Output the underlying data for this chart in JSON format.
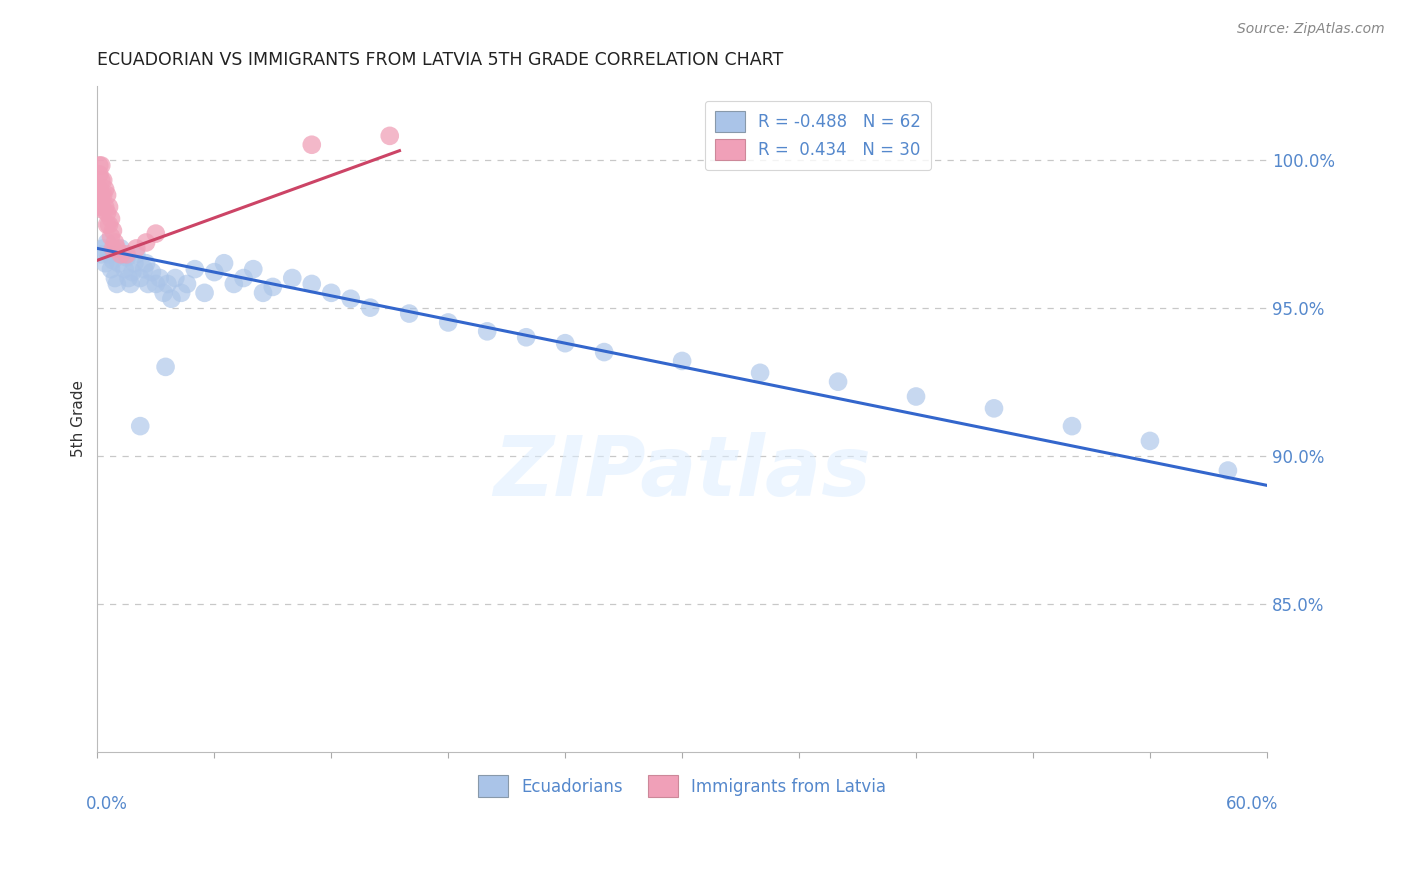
{
  "title": "ECUADORIAN VS IMMIGRANTS FROM LATVIA 5TH GRADE CORRELATION CHART",
  "source": "Source: ZipAtlas.com",
  "ylabel": "5th Grade",
  "xlim": [
    0.0,
    0.6
  ],
  "ylim": [
    0.8,
    1.025
  ],
  "yticks": [
    0.85,
    0.9,
    0.95,
    1.0
  ],
  "ytick_labels": [
    "85.0%",
    "90.0%",
    "95.0%",
    "100.0%"
  ],
  "grid_color": "#c8c8c8",
  "watermark": "ZIPatlas",
  "blue_line_x": [
    0.0,
    0.6
  ],
  "blue_line_y": [
    0.97,
    0.89
  ],
  "pink_line_x": [
    0.0,
    0.155
  ],
  "pink_line_y": [
    0.966,
    1.003
  ],
  "blue_scatter_x": [
    0.002,
    0.003,
    0.004,
    0.005,
    0.006,
    0.007,
    0.008,
    0.009,
    0.01,
    0.011,
    0.012,
    0.013,
    0.014,
    0.015,
    0.016,
    0.017,
    0.018,
    0.019,
    0.02,
    0.022,
    0.024,
    0.025,
    0.026,
    0.028,
    0.03,
    0.032,
    0.034,
    0.036,
    0.038,
    0.04,
    0.043,
    0.046,
    0.05,
    0.055,
    0.06,
    0.065,
    0.07,
    0.075,
    0.08,
    0.085,
    0.09,
    0.1,
    0.11,
    0.12,
    0.13,
    0.14,
    0.16,
    0.18,
    0.2,
    0.22,
    0.24,
    0.26,
    0.3,
    0.34,
    0.38,
    0.42,
    0.46,
    0.5,
    0.54,
    0.58,
    0.022,
    0.035
  ],
  "blue_scatter_y": [
    0.968,
    0.97,
    0.965,
    0.972,
    0.968,
    0.963,
    0.966,
    0.96,
    0.958,
    0.965,
    0.97,
    0.968,
    0.963,
    0.967,
    0.96,
    0.958,
    0.962,
    0.965,
    0.968,
    0.96,
    0.963,
    0.965,
    0.958,
    0.962,
    0.958,
    0.96,
    0.955,
    0.958,
    0.953,
    0.96,
    0.955,
    0.958,
    0.963,
    0.955,
    0.962,
    0.965,
    0.958,
    0.96,
    0.963,
    0.955,
    0.957,
    0.96,
    0.958,
    0.955,
    0.953,
    0.95,
    0.948,
    0.945,
    0.942,
    0.94,
    0.938,
    0.935,
    0.932,
    0.928,
    0.925,
    0.92,
    0.916,
    0.91,
    0.905,
    0.895,
    0.91,
    0.93
  ],
  "pink_scatter_x": [
    0.001,
    0.001,
    0.001,
    0.002,
    0.002,
    0.002,
    0.002,
    0.003,
    0.003,
    0.003,
    0.004,
    0.004,
    0.005,
    0.005,
    0.005,
    0.006,
    0.006,
    0.007,
    0.007,
    0.008,
    0.008,
    0.009,
    0.01,
    0.012,
    0.015,
    0.02,
    0.025,
    0.03,
    0.11,
    0.15
  ],
  "pink_scatter_y": [
    0.998,
    0.995,
    0.99,
    0.998,
    0.993,
    0.988,
    0.984,
    0.993,
    0.988,
    0.983,
    0.99,
    0.984,
    0.988,
    0.982,
    0.978,
    0.984,
    0.978,
    0.98,
    0.974,
    0.976,
    0.97,
    0.972,
    0.97,
    0.968,
    0.968,
    0.97,
    0.972,
    0.975,
    1.005,
    1.008
  ],
  "blue_line_color": "#3366cc",
  "pink_line_color": "#cc4466",
  "scatter_blue_color": "#aac4e8",
  "scatter_pink_color": "#f0a0b8",
  "title_color": "#222222",
  "tick_label_color": "#5588cc",
  "source_color": "#888888",
  "legend_r_color": "#cc0000",
  "legend_n_color": "#3366cc"
}
